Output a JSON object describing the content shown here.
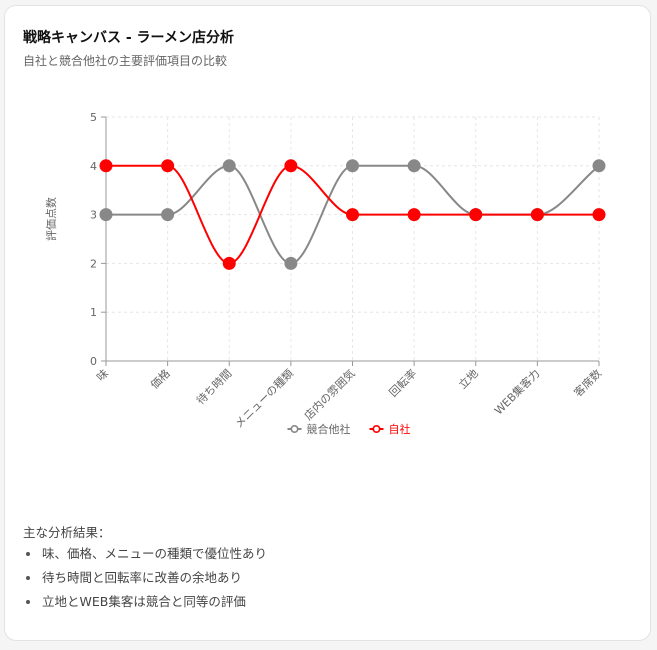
{
  "header": {
    "title": "戦略キャンバス - ラーメン店分析",
    "subtitle": "自社と競合他社の主要評価項目の比較"
  },
  "chart_data": {
    "type": "line",
    "categories": [
      "味",
      "価格",
      "待ち時間",
      "メニューの種類",
      "店内の雰囲気",
      "回転率",
      "立地",
      "WEB集客力",
      "客席数"
    ],
    "series": [
      {
        "name": "競合他社",
        "color": "#888888",
        "values": [
          3,
          3,
          4,
          2,
          4,
          4,
          3,
          3,
          4
        ]
      },
      {
        "name": "自社",
        "color": "#ff0000",
        "values": [
          4,
          4,
          2,
          4,
          3,
          3,
          3,
          3,
          3
        ]
      }
    ],
    "ylabel": "評価点数",
    "xlabel": "",
    "ylim": [
      0,
      5
    ],
    "yticks": [
      0,
      1,
      2,
      3,
      4,
      5
    ],
    "grid": true,
    "curve": "smooth",
    "legend_position": "bottom"
  },
  "findings": {
    "title": "主な分析結果：",
    "items": [
      "味、価格、メニューの種類で優位性あり",
      "待ち時間と回転率に改善の余地あり",
      "立地とWEB集客は競合と同等の評価"
    ]
  }
}
